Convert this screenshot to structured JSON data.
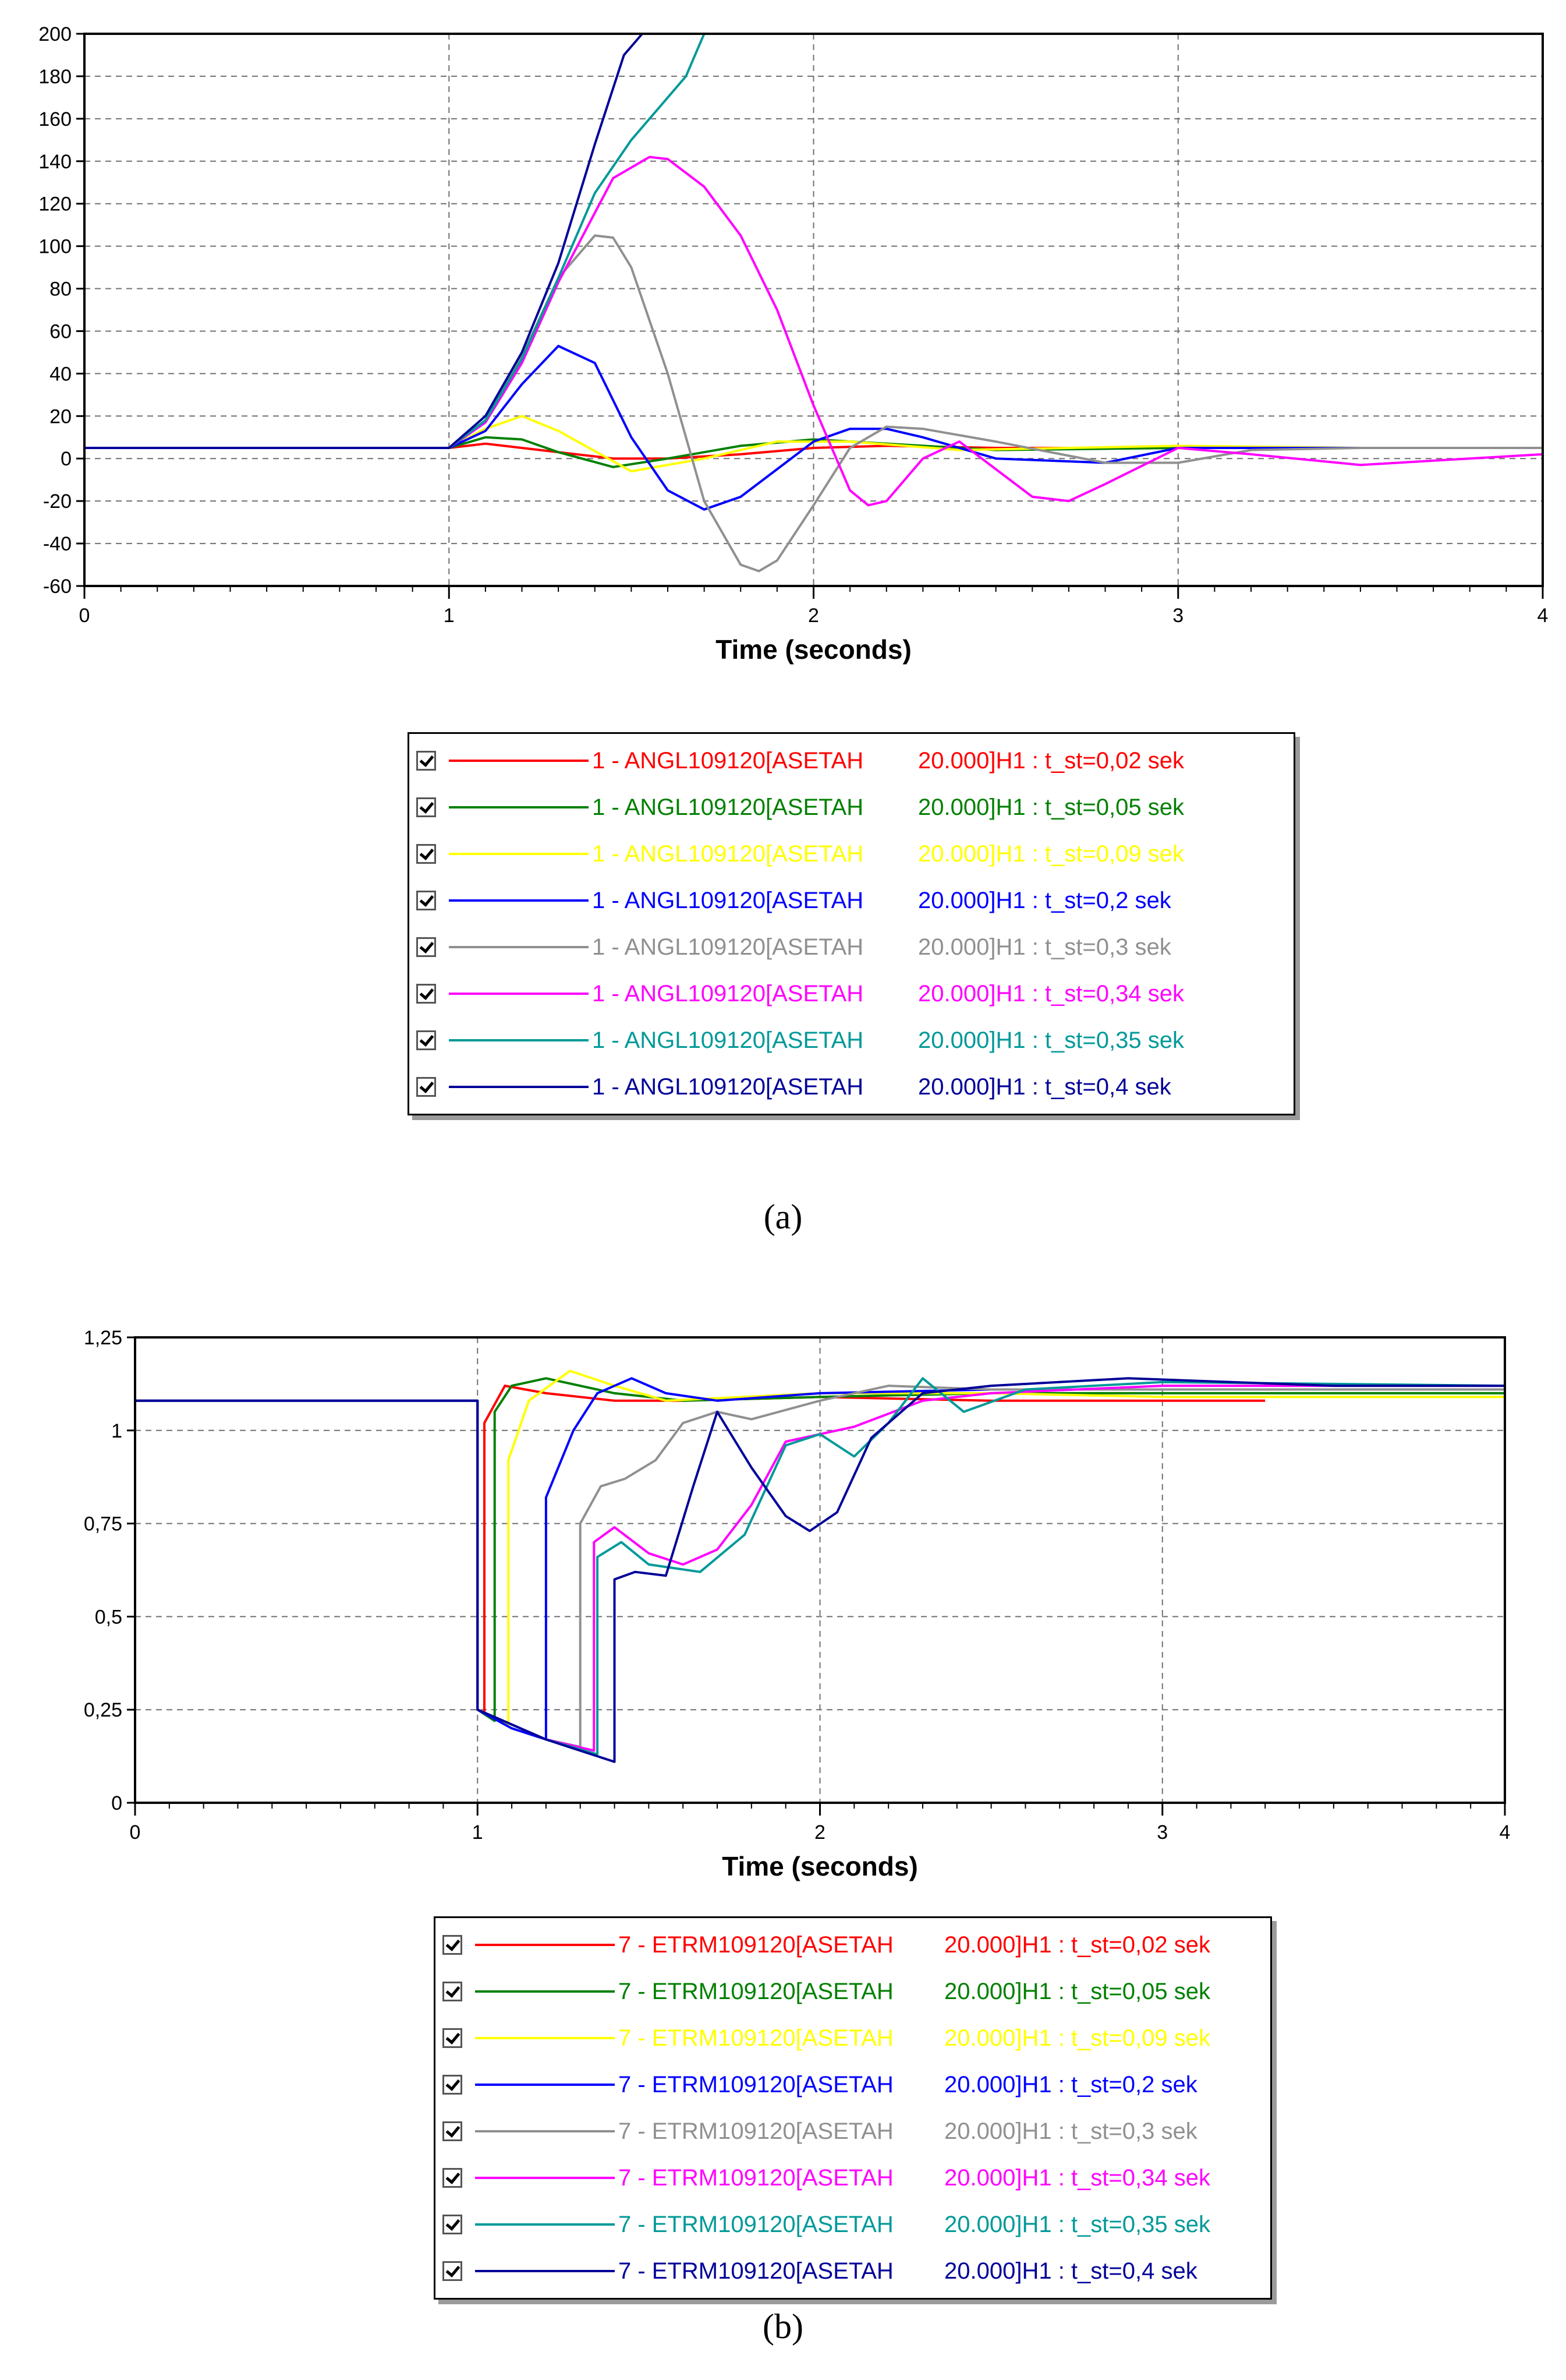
{
  "chart_data": [
    {
      "type": "line",
      "xlabel": "Time (seconds)",
      "xlim": [
        0,
        4
      ],
      "ylim": [
        -60,
        200
      ],
      "x_ticks": [
        "0",
        "1",
        "2",
        "3",
        "4"
      ],
      "y_ticks": [
        "200",
        "180",
        "160",
        "140",
        "120",
        "100",
        "80",
        "60",
        "40",
        "20",
        "0",
        "-20",
        "-40",
        "-60"
      ],
      "grid": true,
      "legend_position": "below",
      "caption": "(a)",
      "series": [
        {
          "signal": "1 - ANGL109120[ASETAH",
          "case": "20.000]H1 : t_st=0,02 sek",
          "color": "#ff0000",
          "x": [
            0,
            1.0,
            1.05,
            1.1,
            1.2,
            1.3,
            1.45,
            1.6,
            1.8,
            2.0,
            2.2,
            2.5,
            3.0,
            3.5,
            4.0
          ],
          "y": [
            5,
            5,
            6,
            7,
            5,
            3,
            0,
            0,
            2,
            5,
            6,
            5,
            5,
            5,
            5
          ]
        },
        {
          "signal": "1 - ANGL109120[ASETAH",
          "case": "20.000]H1 : t_st=0,05 sek",
          "color": "#008000",
          "x": [
            0,
            1.0,
            1.1,
            1.2,
            1.3,
            1.45,
            1.6,
            1.8,
            2.0,
            2.2,
            2.5,
            3.0,
            3.5,
            4.0
          ],
          "y": [
            5,
            5,
            10,
            9,
            3,
            -4,
            0,
            6,
            9,
            7,
            4,
            5,
            5,
            5
          ]
        },
        {
          "signal": "1 - ANGL109120[ASETAH",
          "case": "20.000]H1 : t_st=0,09 sek",
          "color": "#ffff00",
          "x": [
            0,
            1.0,
            1.1,
            1.2,
            1.3,
            1.5,
            1.7,
            1.9,
            2.1,
            2.4,
            3.0,
            3.5,
            4.0
          ],
          "y": [
            5,
            5,
            14,
            20,
            13,
            -6,
            0,
            8,
            8,
            4,
            6,
            5,
            5
          ]
        },
        {
          "signal": "1 - ANGL109120[ASETAH",
          "case": "20.000]H1 : t_st=0,2 sek",
          "color": "#0000ff",
          "x": [
            0,
            1.0,
            1.1,
            1.2,
            1.3,
            1.4,
            1.5,
            1.6,
            1.7,
            1.8,
            1.9,
            2.0,
            2.1,
            2.2,
            2.3,
            2.5,
            2.8,
            3.0,
            3.5,
            4.0
          ],
          "y": [
            5,
            5,
            13,
            35,
            53,
            45,
            10,
            -15,
            -24,
            -18,
            -5,
            8,
            14,
            14,
            10,
            0,
            -2,
            5,
            5,
            5
          ]
        },
        {
          "signal": "1 - ANGL109120[ASETAH",
          "case": "20.000]H1 : t_st=0,3 sek",
          "color": "#909090",
          "x": [
            0,
            1.0,
            1.1,
            1.2,
            1.3,
            1.4,
            1.45,
            1.5,
            1.6,
            1.7,
            1.8,
            1.85,
            1.9,
            2.0,
            2.1,
            2.2,
            2.3,
            2.5,
            2.8,
            3.0,
            3.2,
            3.5,
            4.0
          ],
          "y": [
            5,
            5,
            18,
            48,
            85,
            105,
            104,
            90,
            40,
            -20,
            -50,
            -53,
            -48,
            -22,
            5,
            15,
            14,
            8,
            -2,
            -2,
            4,
            5,
            5
          ]
        },
        {
          "signal": "1 - ANGL109120[ASETAH",
          "case": "20.000]H1 : t_st=0,34 sek",
          "color": "#ff00ff",
          "x": [
            0,
            1.0,
            1.1,
            1.2,
            1.3,
            1.45,
            1.55,
            1.6,
            1.7,
            1.8,
            1.9,
            2.0,
            2.1,
            2.15,
            2.2,
            2.3,
            2.4,
            2.5,
            2.6,
            2.7,
            2.8,
            3.0,
            3.2,
            3.5,
            4.0
          ],
          "y": [
            5,
            5,
            17,
            45,
            83,
            132,
            142,
            141,
            128,
            105,
            70,
            25,
            -15,
            -22,
            -20,
            0,
            8,
            -5,
            -18,
            -20,
            -12,
            5,
            2,
            -3,
            2
          ]
        },
        {
          "signal": "1 - ANGL109120[ASETAH",
          "case": "20.000]H1 : t_st=0,35 sek",
          "color": "#009999",
          "x": [
            0,
            1.0,
            1.1,
            1.2,
            1.3,
            1.4,
            1.5,
            1.6,
            1.65,
            1.7
          ],
          "y": [
            5,
            5,
            18,
            47,
            85,
            125,
            150,
            170,
            180,
            200
          ]
        },
        {
          "signal": "1 - ANGL109120[ASETAH",
          "case": "20.000]H1 : t_st=0,4 sek",
          "color": "#000099",
          "x": [
            0,
            1.0,
            1.1,
            1.2,
            1.3,
            1.4,
            1.48,
            1.53
          ],
          "y": [
            5,
            5,
            20,
            50,
            92,
            148,
            190,
            200
          ]
        }
      ]
    },
    {
      "type": "line",
      "xlabel": "Time (seconds)",
      "xlim": [
        0,
        4
      ],
      "ylim": [
        0,
        1.25
      ],
      "x_ticks": [
        "0",
        "1",
        "2",
        "3",
        "4"
      ],
      "y_ticks": [
        "1,25",
        "1",
        "0,75",
        "0,5",
        "0,25",
        "0"
      ],
      "grid": true,
      "legend_position": "below",
      "caption": "(b)",
      "series": [
        {
          "signal": "7 - ETRM109120[ASETAH",
          "case": "20.000]H1 : t_st=0,02 sek",
          "color": "#ff0000",
          "x": [
            0,
            1.0,
            1.0,
            1.02,
            1.02,
            1.08,
            1.2,
            1.4,
            1.6,
            2.0,
            2.5,
            3.0,
            3.3
          ],
          "y": [
            1.08,
            1.08,
            0.25,
            0.24,
            1.02,
            1.12,
            1.1,
            1.08,
            1.08,
            1.09,
            1.08,
            1.08,
            1.08
          ]
        },
        {
          "signal": "7 - ETRM109120[ASETAH",
          "case": "20.000]H1 : t_st=0,05 sek",
          "color": "#008000",
          "x": [
            0,
            1.0,
            1.0,
            1.05,
            1.05,
            1.1,
            1.2,
            1.4,
            1.6,
            2.0,
            2.5,
            3.0,
            4.0
          ],
          "y": [
            1.08,
            1.08,
            0.25,
            0.22,
            1.05,
            1.12,
            1.14,
            1.1,
            1.08,
            1.09,
            1.1,
            1.1,
            1.1
          ]
        },
        {
          "signal": "7 - ETRM109120[ASETAH",
          "case": "20.000]H1 : t_st=0,09 sek",
          "color": "#ffff00",
          "x": [
            0,
            1.0,
            1.0,
            1.09,
            1.09,
            1.15,
            1.27,
            1.4,
            1.55,
            2.0,
            2.5,
            3.0,
            4.0
          ],
          "y": [
            1.08,
            1.08,
            0.25,
            0.21,
            0.92,
            1.08,
            1.16,
            1.12,
            1.08,
            1.1,
            1.1,
            1.09,
            1.09
          ]
        },
        {
          "signal": "7 - ETRM109120[ASETAH",
          "case": "20.000]H1 : t_st=0,2 sek",
          "color": "#0000ff",
          "x": [
            0,
            1.0,
            1.0,
            1.1,
            1.2,
            1.2,
            1.28,
            1.35,
            1.45,
            1.55,
            1.7,
            2.0,
            2.5,
            3.0,
            4.0
          ],
          "y": [
            1.08,
            1.08,
            0.25,
            0.2,
            0.17,
            0.82,
            1.0,
            1.1,
            1.14,
            1.1,
            1.08,
            1.1,
            1.11,
            1.11,
            1.11
          ]
        },
        {
          "signal": "7 - ETRM109120[ASETAH",
          "case": "20.000]H1 : t_st=0,3 sek",
          "color": "#909090",
          "x": [
            0,
            1.0,
            1.0,
            1.2,
            1.3,
            1.3,
            1.36,
            1.43,
            1.52,
            1.6,
            1.7,
            1.8,
            2.0,
            2.2,
            2.5,
            3.0,
            4.0
          ],
          "y": [
            1.08,
            1.08,
            0.25,
            0.17,
            0.15,
            0.75,
            0.85,
            0.87,
            0.92,
            1.02,
            1.05,
            1.03,
            1.08,
            1.12,
            1.11,
            1.11,
            1.11
          ]
        },
        {
          "signal": "7 - ETRM109120[ASETAH",
          "case": "20.000]H1 : t_st=0,34 sek",
          "color": "#ff00ff",
          "x": [
            0,
            1.0,
            1.0,
            1.2,
            1.34,
            1.34,
            1.4,
            1.5,
            1.6,
            1.7,
            1.8,
            1.9,
            2.1,
            2.3,
            2.5,
            3.0,
            4.0
          ],
          "y": [
            1.08,
            1.08,
            0.25,
            0.17,
            0.14,
            0.7,
            0.74,
            0.67,
            0.64,
            0.68,
            0.8,
            0.97,
            1.01,
            1.08,
            1.1,
            1.12,
            1.12
          ]
        },
        {
          "signal": "7 - ETRM109120[ASETAH",
          "case": "20.000]H1 : t_st=0,35 sek",
          "color": "#009999",
          "x": [
            0,
            1.0,
            1.0,
            1.2,
            1.35,
            1.35,
            1.42,
            1.5,
            1.65,
            1.78,
            1.9,
            2.0,
            2.1,
            2.2,
            2.3,
            2.42,
            2.6,
            3.0,
            4.0
          ],
          "y": [
            1.08,
            1.08,
            0.25,
            0.17,
            0.13,
            0.66,
            0.7,
            0.64,
            0.62,
            0.72,
            0.96,
            0.99,
            0.93,
            1.02,
            1.14,
            1.05,
            1.11,
            1.13,
            1.12
          ]
        },
        {
          "signal": "7 - ETRM109120[ASETAH",
          "case": "20.000]H1 : t_st=0,4 sek",
          "color": "#000099",
          "x": [
            0,
            1.0,
            1.0,
            1.2,
            1.4,
            1.4,
            1.46,
            1.55,
            1.63,
            1.7,
            1.8,
            1.9,
            1.97,
            2.05,
            2.15,
            2.3,
            2.5,
            2.9,
            3.5,
            4.0
          ],
          "y": [
            1.08,
            1.08,
            0.25,
            0.17,
            0.11,
            0.6,
            0.62,
            0.61,
            0.85,
            1.05,
            0.9,
            0.77,
            0.73,
            0.78,
            0.98,
            1.1,
            1.12,
            1.14,
            1.12,
            1.12
          ]
        }
      ]
    }
  ]
}
